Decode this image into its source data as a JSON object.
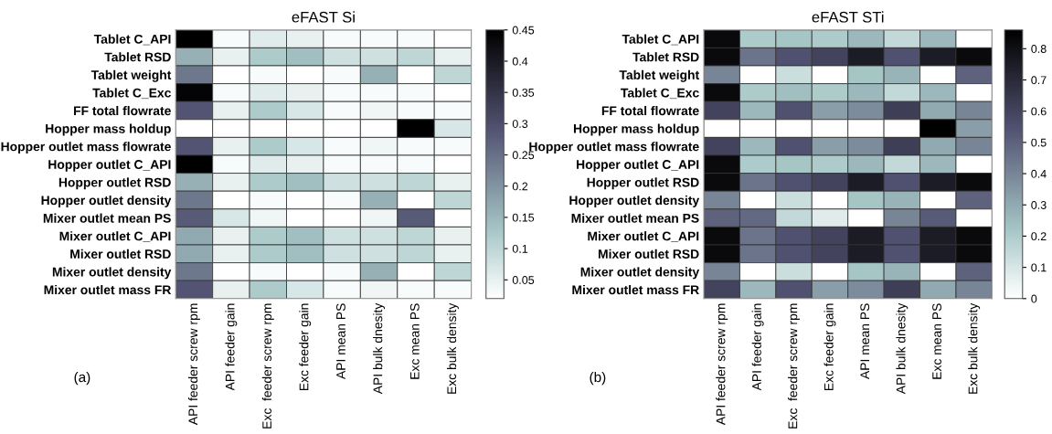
{
  "chart_data": [
    {
      "type": "heatmap",
      "title": "eFAST Si",
      "annotations": [
        "(a)"
      ],
      "categories": [
        "API feeder screw rpm",
        "API feeder gain",
        "Exc  feeder screw rpm",
        "Exc feeder gain",
        "API mean PS",
        "API bulk dnesity",
        "Exc mean PS",
        "Exc bulk density"
      ],
      "y_categories": [
        "Tablet C_API",
        "Tablet RSD",
        "Tablet weight",
        "Tablet C_Exc",
        "FF total flowrate",
        "Hopper mass holdup",
        "Hopper outlet mass flowrate",
        "Hopper outlet C_API",
        "Hopper outlet RSD",
        "Hopper outlet density",
        "Mixer outlet mean PS",
        "Mixer outlet C_API",
        "Mixer outlet RSD",
        "Mixer outlet density",
        "Mixer outlet mass FR"
      ],
      "cells": [
        [
          0.45,
          0.03,
          0.06,
          0.05,
          0.03,
          0.03,
          0.03,
          0.02
        ],
        [
          0.16,
          0.05,
          0.12,
          0.14,
          0.08,
          0.08,
          0.1,
          0.05
        ],
        [
          0.24,
          0.02,
          0.03,
          0.02,
          0.03,
          0.16,
          0.02,
          0.1
        ],
        [
          0.44,
          0.03,
          0.06,
          0.05,
          0.03,
          0.03,
          0.03,
          0.02
        ],
        [
          0.29,
          0.05,
          0.12,
          0.07,
          0.03,
          0.04,
          0.03,
          0.03
        ],
        [
          0.02,
          0.02,
          0.02,
          0.02,
          0.02,
          0.02,
          0.45,
          0.07
        ],
        [
          0.29,
          0.05,
          0.12,
          0.07,
          0.03,
          0.04,
          0.03,
          0.03
        ],
        [
          0.45,
          0.03,
          0.06,
          0.05,
          0.03,
          0.03,
          0.03,
          0.02
        ],
        [
          0.16,
          0.05,
          0.12,
          0.14,
          0.08,
          0.08,
          0.1,
          0.05
        ],
        [
          0.24,
          0.02,
          0.03,
          0.02,
          0.03,
          0.16,
          0.02,
          0.1
        ],
        [
          0.28,
          0.07,
          0.04,
          0.02,
          0.02,
          0.04,
          0.28,
          0.02
        ],
        [
          0.17,
          0.05,
          0.12,
          0.14,
          0.08,
          0.08,
          0.1,
          0.05
        ],
        [
          0.17,
          0.05,
          0.12,
          0.14,
          0.08,
          0.08,
          0.1,
          0.05
        ],
        [
          0.24,
          0.02,
          0.03,
          0.02,
          0.03,
          0.16,
          0.02,
          0.1
        ],
        [
          0.29,
          0.05,
          0.12,
          0.07,
          0.03,
          0.04,
          0.03,
          0.03
        ]
      ],
      "clim": [
        0.02,
        0.45
      ],
      "cticks": [
        0.05,
        0.1,
        0.15,
        0.2,
        0.25,
        0.3,
        0.35,
        0.4,
        0.45
      ]
    },
    {
      "type": "heatmap",
      "title": "eFAST STi",
      "annotations": [
        "(b)"
      ],
      "categories": [
        "API feeder screw rpm",
        "API feeder gain",
        "Exc  feeder screw rpm",
        "Exc feeder gain",
        "API mean PS",
        "API bulk dnesity",
        "Exc mean PS",
        "Exc bulk density"
      ],
      "y_categories": [
        "Tablet C_API",
        "Tablet RSD",
        "Tablet weight",
        "Tablet C_Exc",
        "FF total flowrate",
        "Hopper mass holdup",
        "Hopper outlet mass flowrate",
        "Hopper outlet C_API",
        "Hopper outlet RSD",
        "Hopper outlet density",
        "Mixer outlet mean PS",
        "Mixer outlet C_API",
        "Mixer outlet RSD",
        "Mixer outlet density",
        "Mixer outlet mass FR"
      ],
      "cells": [
        [
          0.82,
          0.2,
          0.22,
          0.2,
          0.26,
          0.15,
          0.26,
          0
        ],
        [
          0.82,
          0.45,
          0.55,
          0.6,
          0.75,
          0.55,
          0.75,
          0.82
        ],
        [
          0.4,
          0,
          0.13,
          0,
          0.22,
          0.27,
          0,
          0.5
        ],
        [
          0.82,
          0.2,
          0.24,
          0.2,
          0.26,
          0.15,
          0.26,
          0
        ],
        [
          0.6,
          0.26,
          0.55,
          0.33,
          0.38,
          0.62,
          0.3,
          0.4
        ],
        [
          0,
          0,
          0,
          0,
          0,
          0,
          0.86,
          0.33
        ],
        [
          0.6,
          0.26,
          0.55,
          0.33,
          0.38,
          0.62,
          0.3,
          0.4
        ],
        [
          0.82,
          0.2,
          0.22,
          0.2,
          0.26,
          0.15,
          0.26,
          0
        ],
        [
          0.82,
          0.45,
          0.55,
          0.6,
          0.75,
          0.55,
          0.75,
          0.82
        ],
        [
          0.4,
          0,
          0.13,
          0,
          0.22,
          0.27,
          0,
          0.5
        ],
        [
          0.5,
          0.48,
          0.15,
          0.08,
          0,
          0.4,
          0.52,
          0
        ],
        [
          0.82,
          0.45,
          0.55,
          0.6,
          0.75,
          0.55,
          0.75,
          0.82
        ],
        [
          0.82,
          0.45,
          0.55,
          0.6,
          0.75,
          0.55,
          0.75,
          0.82
        ],
        [
          0.4,
          0,
          0.13,
          0,
          0.22,
          0.27,
          0,
          0.5
        ],
        [
          0.6,
          0.26,
          0.55,
          0.33,
          0.38,
          0.62,
          0.3,
          0.4
        ]
      ],
      "clim": [
        0,
        0.86
      ],
      "cticks": [
        0,
        0.1,
        0.2,
        0.3,
        0.4,
        0.5,
        0.6,
        0.7,
        0.8
      ]
    }
  ]
}
